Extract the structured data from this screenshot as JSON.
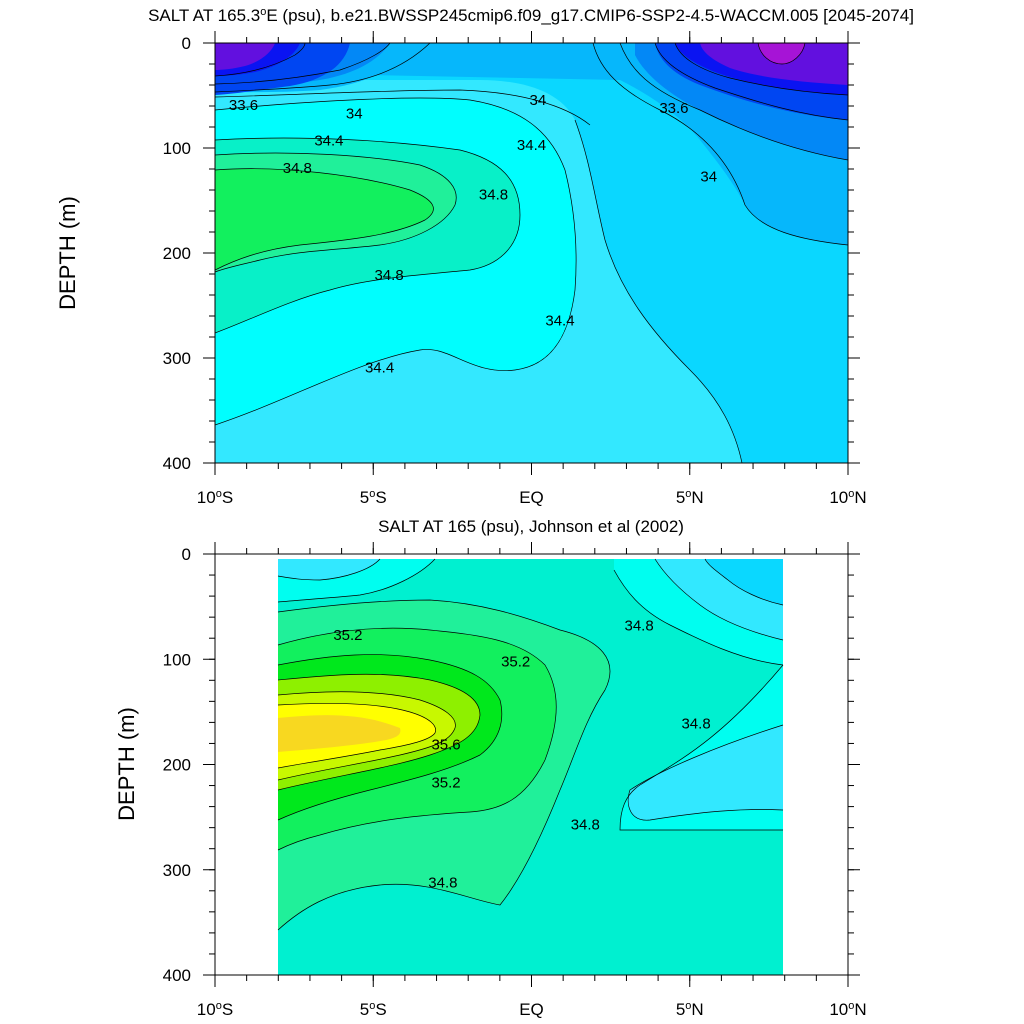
{
  "chart_data": [
    {
      "type": "contour",
      "title": "SALT AT 165.3°E (psu), b.e21.BWSSP245cmip6.f09_g17.CMIP6-SSP2-4.5-WACCM.005 [2045-2074]",
      "title_parts": [
        "SALT AT 165.3",
        "o",
        "E (psu), b.e21.BWSSP245cmip6.f09_g17.CMIP6-SSP2-4.5-WACCM.005 [2045-2074]"
      ],
      "ylabel": "DEPTH (m)",
      "xlim": [
        -10,
        10
      ],
      "ylim": [
        0,
        400
      ],
      "y_reversed": true,
      "x_ticks": [
        {
          "value": -10,
          "label": "10",
          "deg": "o",
          "suffix": "S"
        },
        {
          "value": -5,
          "label": "5",
          "deg": "o",
          "suffix": "S"
        },
        {
          "value": 0,
          "label": "EQ",
          "deg": "",
          "suffix": ""
        },
        {
          "value": 5,
          "label": "5",
          "deg": "o",
          "suffix": "N"
        },
        {
          "value": 10,
          "label": "10",
          "deg": "o",
          "suffix": "N"
        }
      ],
      "y_ticks": [
        {
          "value": 0,
          "label": "0"
        },
        {
          "value": 100,
          "label": "100"
        },
        {
          "value": 200,
          "label": "200"
        },
        {
          "value": 300,
          "label": "300"
        },
        {
          "value": 400,
          "label": "400"
        }
      ],
      "data_extent": {
        "x": [
          -10,
          10
        ],
        "depth": [
          0,
          400
        ]
      },
      "fill_levels": [
        {
          "salinity": 34.2,
          "color": "#33e8ff"
        },
        {
          "salinity": 34.0,
          "color": "#0ad7ff"
        },
        {
          "salinity": 33.8,
          "color": "#06b7fb"
        },
        {
          "salinity": 33.6,
          "color": "#0388f6"
        },
        {
          "salinity": 33.4,
          "color": "#0046f2"
        },
        {
          "salinity": 33.2,
          "color": "#0a14f2"
        },
        {
          "salinity": 33.0,
          "color": "#6210df"
        },
        {
          "salinity": 32.8,
          "color": "#a614d6"
        },
        {
          "salinity": 34.4,
          "color": "#00fefe"
        },
        {
          "salinity": 34.6,
          "color": "#08f0c8"
        },
        {
          "salinity": 34.8,
          "color": "#20f09a"
        },
        {
          "salinity": 35.0,
          "color": "#12f05e"
        }
      ],
      "contour_labels": [
        {
          "text": "33.6",
          "x": -9.1,
          "depth": 60
        },
        {
          "text": "34",
          "x": -5.6,
          "depth": 68
        },
        {
          "text": "34",
          "x": 0.2,
          "depth": 55
        },
        {
          "text": "33.6",
          "x": 4.5,
          "depth": 63
        },
        {
          "text": "34.4",
          "x": -6.4,
          "depth": 94
        },
        {
          "text": "34.4",
          "x": 0.0,
          "depth": 98
        },
        {
          "text": "34",
          "x": 5.6,
          "depth": 128
        },
        {
          "text": "34.8",
          "x": -7.4,
          "depth": 120
        },
        {
          "text": "34.8",
          "x": -1.2,
          "depth": 145
        },
        {
          "text": "34.8",
          "x": -4.5,
          "depth": 222
        },
        {
          "text": "34.4",
          "x": 0.9,
          "depth": 265
        },
        {
          "text": "34.4",
          "x": -4.8,
          "depth": 310
        }
      ]
    },
    {
      "type": "contour",
      "title": "SALT AT 165 (psu), Johnson et al (2002)",
      "title_parts": [
        "SALT AT 165 (psu), Johnson et al (2002)",
        "",
        ""
      ],
      "ylabel": "DEPTH (m)",
      "xlim": [
        -10,
        10
      ],
      "ylim": [
        0,
        400
      ],
      "y_reversed": true,
      "x_ticks": [
        {
          "value": -10,
          "label": "10",
          "deg": "o",
          "suffix": "S"
        },
        {
          "value": -5,
          "label": "5",
          "deg": "o",
          "suffix": "S"
        },
        {
          "value": 0,
          "label": "EQ",
          "deg": "",
          "suffix": ""
        },
        {
          "value": 5,
          "label": "5",
          "deg": "o",
          "suffix": "N"
        },
        {
          "value": 10,
          "label": "10",
          "deg": "o",
          "suffix": "N"
        }
      ],
      "y_ticks": [
        {
          "value": 0,
          "label": "0"
        },
        {
          "value": 100,
          "label": "100"
        },
        {
          "value": 200,
          "label": "200"
        },
        {
          "value": 300,
          "label": "300"
        },
        {
          "value": 400,
          "label": "400"
        }
      ],
      "data_extent": {
        "x": [
          -8,
          8
        ],
        "depth": [
          5,
          400
        ]
      },
      "fill_levels": [
        {
          "salinity": 34.8,
          "color": "#00f0d0"
        },
        {
          "salinity": 34.6,
          "color": "#00fef0"
        },
        {
          "salinity": 34.4,
          "color": "#32e8ff"
        },
        {
          "salinity": 34.2,
          "color": "#0ad8ff"
        },
        {
          "salinity": 35.0,
          "color": "#20f09a"
        },
        {
          "salinity": 35.2,
          "color": "#12f05e"
        },
        {
          "salinity": 35.3,
          "color": "#00e81c"
        },
        {
          "salinity": 35.4,
          "color": "#8ef000"
        },
        {
          "salinity": 35.5,
          "color": "#c8f800"
        },
        {
          "salinity": 35.6,
          "color": "#ffff00"
        },
        {
          "salinity": 35.7,
          "color": "#f8d820"
        }
      ],
      "contour_labels": [
        {
          "text": "35.2",
          "x": -5.8,
          "depth": 78
        },
        {
          "text": "35.2",
          "x": -0.5,
          "depth": 103
        },
        {
          "text": "34.8",
          "x": 3.4,
          "depth": 69
        },
        {
          "text": "35.6",
          "x": -2.7,
          "depth": 182
        },
        {
          "text": "34.8",
          "x": 5.2,
          "depth": 162
        },
        {
          "text": "35.2",
          "x": -2.7,
          "depth": 218
        },
        {
          "text": "34.8",
          "x": 1.7,
          "depth": 258
        },
        {
          "text": "34.8",
          "x": -2.8,
          "depth": 313
        }
      ]
    }
  ]
}
